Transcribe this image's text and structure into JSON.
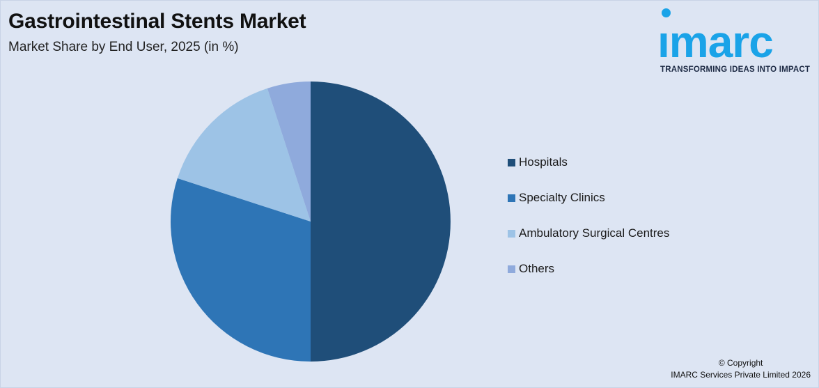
{
  "header": {
    "title": "Gastrointestinal Stents Market",
    "subtitle": "Market Share by End User, 2025 (in %)"
  },
  "logo": {
    "word": "ımarc",
    "tagline": "TRANSFORMING IDEAS INTO IMPACT",
    "color": "#1aa3e8"
  },
  "footer": {
    "line1": "© Copyright",
    "line2": "IMARC Services Private Limited 2026"
  },
  "chart_data": {
    "type": "pie",
    "title": "Market Share by End User, 2025 (in %)",
    "categories": [
      "Hospitals",
      "Specialty Clinics",
      "Ambulatory Surgical Centres",
      "Others"
    ],
    "values": [
      50,
      30,
      15,
      5
    ],
    "colors": [
      "#1f4e79",
      "#2e75b6",
      "#9dc3e6",
      "#8faadc"
    ],
    "start_angle": "12 o'clock",
    "direction": "clockwise",
    "legend_position": "right"
  }
}
